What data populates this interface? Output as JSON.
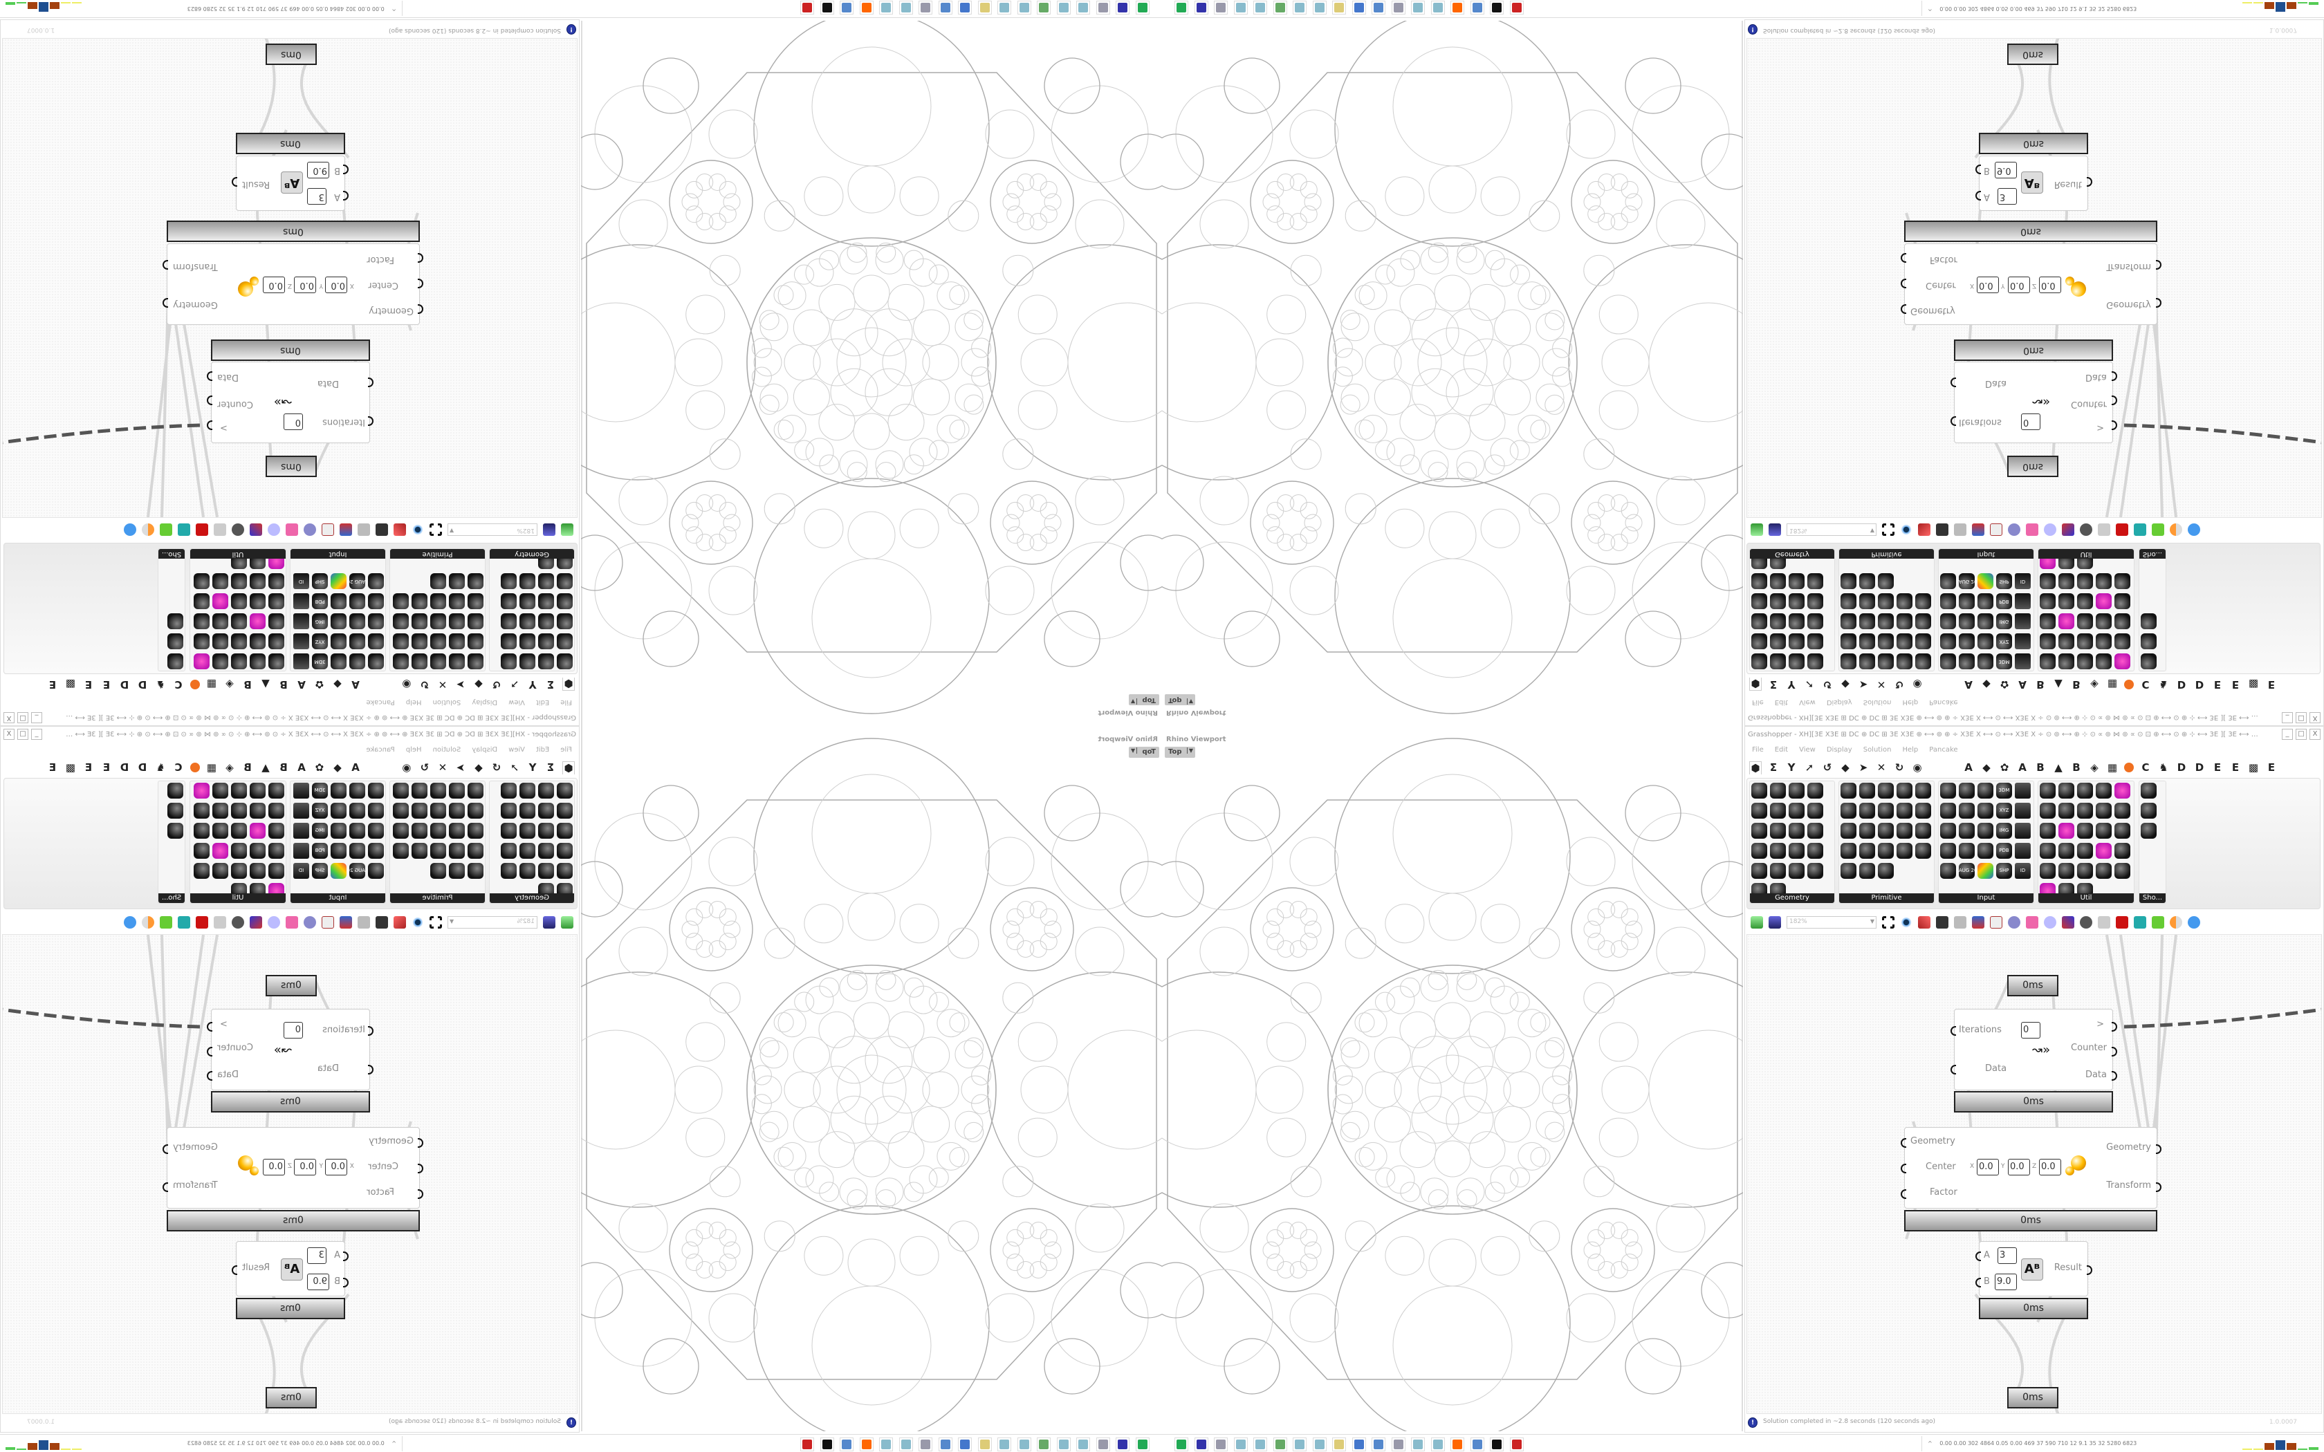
{
  "viewport": {
    "label": "Rhino Viewport",
    "view": "Top"
  },
  "grasshopper": {
    "title": "Grasshopper - XH][3E X3E ⊞ DC ⊕ DC ⊞ 3E X3E ⊕ ⟷ ⊚ ⊕ ÷ X3E X ⟷ ⊙ ⟷ X3E X ÷ ⊙ ⊚ ⟷ ⊕ ⊹ ⊙ ∝ ⊚ ⋈ ⊚ ∝ ⊙ ⊡ ⊕ ⟷ ⊙ ⊕ ⊹ ⟷ 3E ][ 3E ⟷ ⊹ ⊙ ⟷ ⊕ ⊹ ⊙ ∝ ⊚ ⋈ ⊚ ∝ ⊙ ⊡ ⊕ ⟷ ⊚ ⊙ ÷ X3E X ⟷ ⊙…",
    "window_buttons": [
      "_",
      "□",
      "X"
    ],
    "menu": [
      "File",
      "Edit",
      "View",
      "Display",
      "Solution",
      "Help",
      "Pancake"
    ],
    "tabs_left_icons": [
      "params-hex-icon",
      "maths-sigma-icon",
      "sets-icon",
      "vector-icon",
      "curve-icon",
      "surface-icon",
      "mesh-icon",
      "intersect-icon",
      "transform-icon",
      "display-eye-icon"
    ],
    "tabs_right": [
      "A",
      "◆",
      "✿",
      "A",
      "B",
      "▲",
      "B",
      "◈",
      "▦",
      "●",
      "C",
      "♞",
      "D",
      "D",
      "E",
      "E",
      "▩",
      "E"
    ],
    "ribbon_panels": [
      {
        "label": "Geometry",
        "count": 22,
        "cols": 4
      },
      {
        "label": "Primitive",
        "count": 23,
        "cols": 5
      },
      {
        "label": "Input",
        "count": 25,
        "cols": 5
      },
      {
        "label": "Util",
        "count": 28,
        "cols": 5
      },
      {
        "label": "Sho...",
        "count": 3,
        "cols": 1
      }
    ],
    "ribbon_input_labels": [
      "3DM",
      "XYZ",
      "IMG",
      "PDB",
      "AUG 20",
      "SHP",
      "ID"
    ],
    "toolbar": {
      "zoom": "182%"
    },
    "canvas": {
      "param_top_time": "0ms",
      "loop": {
        "in": [
          "Iterations",
          "Data"
        ],
        "iterations_value": "0",
        "out": [
          ">",
          "Counter",
          "Data"
        ],
        "time": "0ms"
      },
      "scale": {
        "in": [
          "Geometry",
          "Center",
          "Factor"
        ],
        "center_x": "0.0",
        "center_y": "0.0",
        "center_z": "0.0",
        "xyz": [
          "X",
          "Y",
          "Z"
        ],
        "out": [
          "Geometry",
          "Transform"
        ],
        "time": "0ms"
      },
      "power": {
        "in": [
          "A",
          "B"
        ],
        "a_value": "3",
        "b_value": "9.0",
        "out": [
          "Result"
        ],
        "time": "0ms"
      },
      "param_bottom_time": "0ms"
    },
    "status": {
      "message": "Solution completed in ~2.8 seconds (120 seconds ago)",
      "version": "1.0.0007"
    }
  },
  "taskbar": {
    "apps": [
      "task-manager-icon",
      "floppy-64-icon",
      "script-icon",
      "notepad-icon",
      "notepad-icon",
      "monitor-icon",
      "notepad-icon",
      "notepad-icon",
      "folder-icon",
      "control-panel-icon",
      "calculator-icon",
      "script-icon",
      "notepad-icon",
      "notepad-icon",
      "firefox-icon",
      "calculator-icon",
      "rhino-icon",
      "antivirus-icon"
    ],
    "tray_text": "0.00 0.00 302 4864 0.05 0.00 469  37  590  710  12  9.1  35  32  5280 6823",
    "tray_arrow": "^"
  },
  "colors": {
    "accent_orange": "#f07020",
    "info_blue": "#2a3aa8",
    "wire_dark": "#555555",
    "geometry_stroke": "#aaaaaa"
  }
}
